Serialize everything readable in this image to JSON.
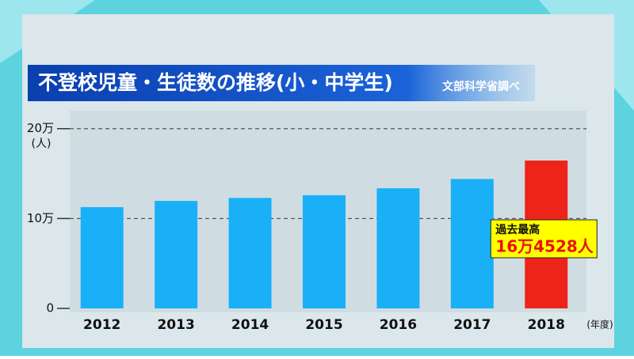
{
  "chart_data": {
    "type": "bar",
    "title": "不登校児童・生徒数の推移(小・中学生)",
    "source": "文部科学省調べ",
    "y_unit": "(人)",
    "x_unit": "(年度)",
    "categories": [
      "2012",
      "2013",
      "2014",
      "2015",
      "2016",
      "2017",
      "2018"
    ],
    "values": [
      112689,
      119617,
      122897,
      125991,
      133683,
      144031,
      164528
    ],
    "value_labels": [
      null,
      null,
      null,
      null,
      null,
      null,
      "16万4528人"
    ],
    "annotation": "過去最高",
    "colors": [
      "#1ab0f8",
      "#1ab0f8",
      "#1ab0f8",
      "#1ab0f8",
      "#1ab0f8",
      "#1ab0f8",
      "#ee2419"
    ],
    "ylim": [
      0,
      220000
    ],
    "yticks": [
      0,
      {
        "value": 100000,
        "label": "10万"
      },
      {
        "value": 200000,
        "label": "20万"
      }
    ],
    "grid": true
  }
}
